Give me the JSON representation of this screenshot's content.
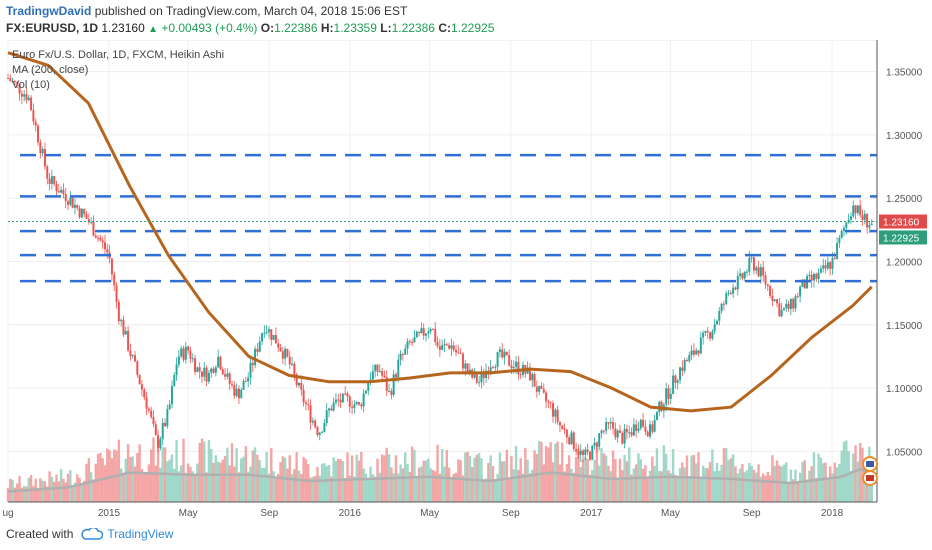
{
  "header": {
    "author": "TradingwDavid",
    "published_text": "published on TradingView.com, March 04, 2018 15:06 EST",
    "symbol": "FX:EURUSD, 1D",
    "last": "1.23160",
    "change": "+0.00493 (+0.4%)",
    "o_label": "O:",
    "o_value": "1.22386",
    "h_label": "H:",
    "h_value": "1.23359",
    "l_label": "L:",
    "l_value": "1.22386",
    "c_label": "C:",
    "c_value": "1.22925"
  },
  "footer": {
    "created_with": "Created with",
    "brand": "TradingView"
  },
  "colors": {
    "up": "#26a69a",
    "down": "#ef5350",
    "ma": "#b5651d",
    "levels": "#2f6fd6",
    "vol_up": "#9fd8c8",
    "vol_down": "#f4a5a5",
    "last_price_bg": "#e04a4a",
    "close_price_bg": "#2e9e7a"
  },
  "chart_data": {
    "type": "line",
    "title": "Euro Fx/U.S. Dollar, 1D, FXCM, Heikin Ashi",
    "legend": [
      "Euro Fx/U.S. Dollar, 1D, FXCM, Heikin Ashi",
      "MA (200, close)",
      "Vol (10)"
    ],
    "legend_placement": "top-left",
    "grid": true,
    "xlabel": "",
    "ylabel": "",
    "ylim": [
      1.01,
      1.375
    ],
    "xlim": [
      "2014-08-01",
      "2018-03-10"
    ],
    "y_ticks": [
      "1.35000",
      "1.30000",
      "1.25000",
      "1.20000",
      "1.15000",
      "1.10000",
      "1.05000"
    ],
    "x_ticks": [
      {
        "label": "ug",
        "date": "2014-08-01"
      },
      {
        "label": "2015",
        "date": "2015-01-01"
      },
      {
        "label": "May",
        "date": "2015-05-01"
      },
      {
        "label": "Sep",
        "date": "2015-09-01"
      },
      {
        "label": "2016",
        "date": "2016-01-01"
      },
      {
        "label": "May",
        "date": "2016-05-01"
      },
      {
        "label": "Sep",
        "date": "2016-09-01"
      },
      {
        "label": "2017",
        "date": "2017-01-01"
      },
      {
        "label": "May",
        "date": "2017-05-01"
      },
      {
        "label": "Sep",
        "date": "2017-09-01"
      },
      {
        "label": "2018",
        "date": "2018-01-01"
      }
    ],
    "price_labels": {
      "last": "1.23160",
      "close": "1.22925"
    },
    "horizontal_levels": [
      1.284,
      1.2515,
      1.224,
      1.205,
      1.1845
    ],
    "series": [
      {
        "name": "Euro Fx/U.S. Dollar, 1D, FXCM, Heikin Ashi",
        "style": "heikin-ashi",
        "x": [
          "2014-08-01",
          "2014-09-01",
          "2014-10-01",
          "2014-11-01",
          "2014-12-01",
          "2015-01-01",
          "2015-01-15",
          "2015-02-01",
          "2015-03-01",
          "2015-03-15",
          "2015-04-01",
          "2015-04-15",
          "2015-05-01",
          "2015-05-15",
          "2015-06-01",
          "2015-06-15",
          "2015-07-01",
          "2015-07-15",
          "2015-08-01",
          "2015-08-24",
          "2015-09-15",
          "2015-10-01",
          "2015-10-15",
          "2015-11-01",
          "2015-11-15",
          "2015-12-03",
          "2015-12-15",
          "2016-01-01",
          "2016-01-15",
          "2016-02-01",
          "2016-02-15",
          "2016-03-01",
          "2016-03-15",
          "2016-04-01",
          "2016-04-15",
          "2016-05-03",
          "2016-05-15",
          "2016-06-01",
          "2016-06-15",
          "2016-07-01",
          "2016-07-15",
          "2016-08-01",
          "2016-08-15",
          "2016-09-01",
          "2016-09-15",
          "2016-10-01",
          "2016-10-15",
          "2016-11-01",
          "2016-11-15",
          "2016-12-01",
          "2016-12-20",
          "2017-01-03",
          "2017-01-15",
          "2017-02-01",
          "2017-02-15",
          "2017-03-01",
          "2017-03-15",
          "2017-04-01",
          "2017-04-15",
          "2017-05-01",
          "2017-05-15",
          "2017-06-01",
          "2017-06-15",
          "2017-07-01",
          "2017-07-15",
          "2017-08-01",
          "2017-08-15",
          "2017-09-01",
          "2017-09-15",
          "2017-10-01",
          "2017-10-15",
          "2017-11-01",
          "2017-11-15",
          "2017-12-01",
          "2017-12-15",
          "2018-01-01",
          "2018-01-15",
          "2018-02-01",
          "2018-02-15",
          "2018-03-02"
        ],
        "values": [
          1.345,
          1.33,
          1.265,
          1.25,
          1.232,
          1.205,
          1.16,
          1.13,
          1.085,
          1.055,
          1.08,
          1.125,
          1.13,
          1.115,
          1.11,
          1.125,
          1.105,
          1.095,
          1.11,
          1.15,
          1.135,
          1.12,
          1.1,
          1.08,
          1.065,
          1.085,
          1.09,
          1.09,
          1.085,
          1.11,
          1.115,
          1.095,
          1.12,
          1.135,
          1.14,
          1.15,
          1.13,
          1.135,
          1.125,
          1.11,
          1.105,
          1.12,
          1.125,
          1.12,
          1.115,
          1.11,
          1.095,
          1.085,
          1.07,
          1.06,
          1.045,
          1.05,
          1.065,
          1.07,
          1.06,
          1.065,
          1.075,
          1.065,
          1.085,
          1.1,
          1.115,
          1.125,
          1.135,
          1.145,
          1.16,
          1.18,
          1.185,
          1.2,
          1.19,
          1.175,
          1.16,
          1.165,
          1.18,
          1.185,
          1.19,
          1.2,
          1.22,
          1.245,
          1.235,
          1.229
        ]
      },
      {
        "name": "MA (200, close)",
        "x": [
          "2014-08-01",
          "2014-10-01",
          "2014-12-01",
          "2015-02-01",
          "2015-04-01",
          "2015-06-01",
          "2015-08-01",
          "2015-10-01",
          "2015-12-01",
          "2016-02-01",
          "2016-04-01",
          "2016-06-01",
          "2016-08-01",
          "2016-10-01",
          "2016-12-01",
          "2017-02-01",
          "2017-04-01",
          "2017-06-01",
          "2017-08-01",
          "2017-10-01",
          "2017-12-01",
          "2018-02-01",
          "2018-03-02"
        ],
        "values": [
          1.365,
          1.355,
          1.325,
          1.26,
          1.205,
          1.16,
          1.125,
          1.11,
          1.105,
          1.105,
          1.108,
          1.112,
          1.112,
          1.115,
          1.113,
          1.1,
          1.085,
          1.082,
          1.085,
          1.11,
          1.14,
          1.165,
          1.18
        ]
      },
      {
        "name": "Vol (10)",
        "x": [
          "2014-08-01",
          "2014-11-01",
          "2015-02-01",
          "2015-05-01",
          "2015-08-01",
          "2015-11-01",
          "2016-02-01",
          "2016-05-01",
          "2016-08-01",
          "2016-11-01",
          "2017-02-01",
          "2017-05-01",
          "2017-08-01",
          "2017-11-01",
          "2018-01-15",
          "2018-02-15",
          "2018-03-02"
        ],
        "values": [
          0.25,
          0.35,
          0.7,
          0.65,
          0.65,
          0.5,
          0.55,
          0.6,
          0.5,
          0.7,
          0.55,
          0.6,
          0.55,
          0.45,
          0.6,
          0.8,
          0.55
        ]
      }
    ]
  }
}
